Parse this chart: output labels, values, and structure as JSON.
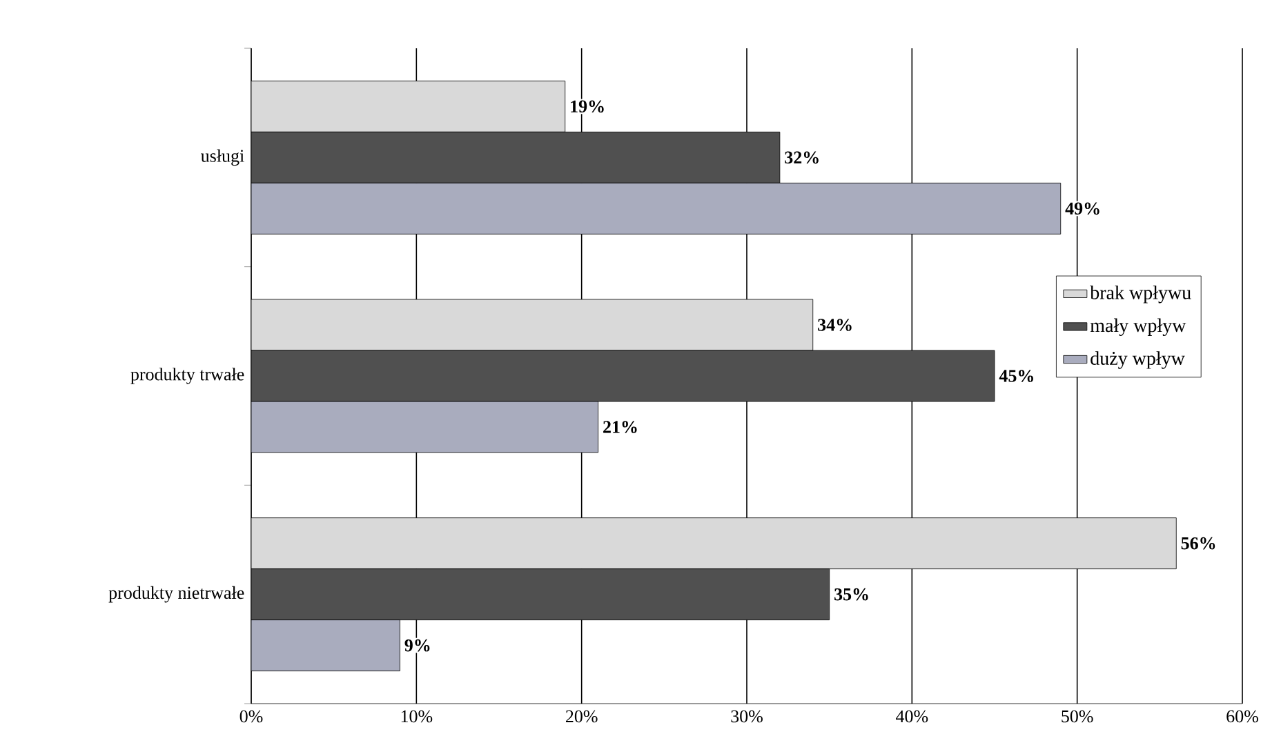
{
  "chart_data": {
    "type": "bar",
    "orientation": "horizontal",
    "categories": [
      "usługi",
      "produkty trwałe",
      "produkty nietrwałe"
    ],
    "series": [
      {
        "name": "brak wpływu",
        "color": "#d9d9d9",
        "values": [
          19,
          34,
          56
        ],
        "value_labels": [
          "19%",
          "34%",
          "56%"
        ]
      },
      {
        "name": "mały wpływ",
        "color": "#505050",
        "values": [
          32,
          45,
          35
        ],
        "value_labels": [
          "32%",
          "45%",
          "35%"
        ]
      },
      {
        "name": "duży wpływ",
        "color": "#a9acbe",
        "values": [
          49,
          21,
          9
        ],
        "value_labels": [
          "49%",
          "21%",
          "9%"
        ]
      }
    ],
    "xlim": [
      0,
      60
    ],
    "xticks": [
      {
        "value": 0,
        "label": "0%"
      },
      {
        "value": 10,
        "label": "10%"
      },
      {
        "value": 20,
        "label": "20%"
      },
      {
        "value": 30,
        "label": "30%"
      },
      {
        "value": 40,
        "label": "40%"
      },
      {
        "value": 50,
        "label": "50%"
      },
      {
        "value": 60,
        "label": "60%"
      }
    ],
    "grid": "x",
    "legend": "right"
  }
}
